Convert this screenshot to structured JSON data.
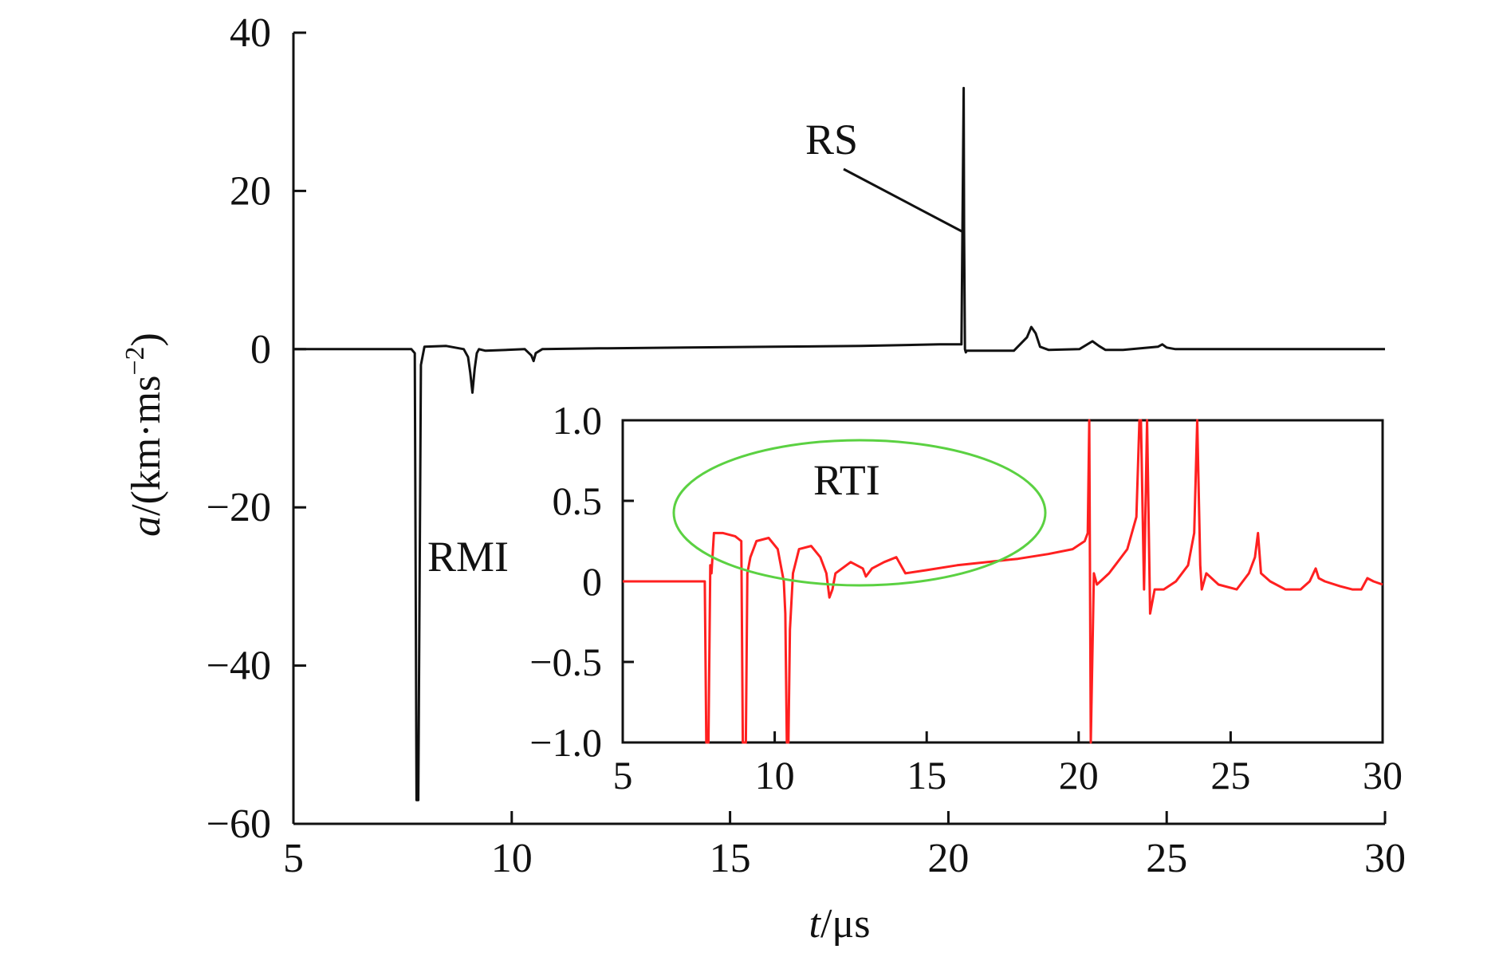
{
  "chart_data": [
    {
      "type": "line",
      "title": "",
      "xlabel_var": "t",
      "xlabel_unit": "/μs",
      "ylabel_var": "a",
      "ylabel_unit_open": "/(km·ms",
      "ylabel_sup": "−2",
      "ylabel_close": ")",
      "xlim": [
        5,
        30
      ],
      "ylim": [
        -60,
        40
      ],
      "xticks": [
        5,
        10,
        15,
        20,
        25,
        30
      ],
      "yticks": [
        -60,
        -40,
        -20,
        0,
        20,
        40
      ],
      "ytick_labels": [
        "−60",
        "−40",
        "−20",
        "0",
        "20",
        "40"
      ],
      "grid": false,
      "series": [
        {
          "color": "#111111",
          "x": [
            5,
            7.7,
            7.78,
            7.82,
            7.86,
            7.92,
            8.0,
            8.5,
            8.9,
            9.0,
            9.05,
            9.1,
            9.15,
            9.2,
            9.25,
            9.4,
            10.3,
            10.45,
            10.5,
            10.55,
            10.7,
            12,
            14,
            16,
            18,
            19.8,
            20.3,
            20.35,
            20.36,
            20.38,
            20.4,
            20.42,
            21.5,
            21.8,
            21.9,
            22.0,
            22.1,
            22.3,
            23.0,
            23.3,
            23.45,
            23.6,
            24.0,
            24.8,
            24.9,
            25.0,
            25.2,
            27,
            30
          ],
          "y": [
            0,
            0,
            -0.5,
            -57,
            -57,
            -2,
            0.3,
            0.4,
            0,
            -1,
            -3,
            -5.5,
            -2.5,
            -0.5,
            0,
            -0.2,
            0,
            -0.8,
            -1.5,
            -0.5,
            0,
            0.1,
            0.2,
            0.3,
            0.4,
            0.6,
            0.6,
            33,
            15,
            0,
            -0.4,
            -0.2,
            -0.2,
            1.5,
            2.8,
            2,
            0.3,
            -0.1,
            0,
            1,
            0.4,
            -0.1,
            -0.1,
            0.3,
            0.6,
            0.2,
            0,
            0,
            0
          ]
        }
      ],
      "annotations": [
        {
          "text": "RS"
        },
        {
          "text": "RMI"
        }
      ]
    },
    {
      "type": "line",
      "title": "",
      "xlim": [
        5,
        30
      ],
      "ylim": [
        -1.0,
        1.0
      ],
      "xticks": [
        5,
        10,
        15,
        20,
        25,
        30
      ],
      "yticks": [
        -1.0,
        -0.5,
        0,
        0.5,
        1.0
      ],
      "ytick_labels": [
        "−1.0",
        "−0.5",
        "0",
        "0.5",
        "1.0"
      ],
      "grid": false,
      "series": [
        {
          "color": "#ff2020",
          "x": [
            5,
            7.7,
            7.75,
            7.82,
            7.88,
            7.92,
            8.0,
            8.3,
            8.7,
            8.9,
            8.95,
            9.0,
            9.05,
            9.1,
            9.2,
            9.4,
            9.8,
            10.1,
            10.3,
            10.35,
            10.4,
            10.45,
            10.5,
            10.6,
            10.8,
            11.2,
            11.5,
            11.7,
            11.8,
            11.9,
            12.0,
            12.5,
            12.9,
            13.0,
            13.2,
            13.6,
            14.0,
            14.3,
            15.0,
            16.0,
            17.0,
            18.0,
            19.0,
            19.8,
            20.2,
            20.3,
            20.35,
            20.4,
            20.5,
            20.6,
            21.0,
            21.6,
            21.9,
            22.0,
            22.05,
            22.15,
            22.25,
            22.35,
            22.5,
            22.8,
            23.2,
            23.6,
            23.8,
            23.9,
            24.0,
            24.05,
            24.2,
            24.6,
            25.2,
            25.6,
            25.8,
            25.9,
            26.0,
            26.3,
            26.8,
            27.3,
            27.6,
            27.8,
            27.9,
            28.1,
            28.6,
            29.0,
            29.3,
            29.5,
            29.7,
            30.0
          ],
          "y": [
            0,
            0,
            -1.05,
            -1.05,
            0.1,
            0.05,
            0.3,
            0.3,
            0.28,
            0.25,
            -1.05,
            -1.05,
            -1.05,
            0.05,
            0.15,
            0.25,
            0.27,
            0.2,
            0.0,
            -0.2,
            -1.05,
            -1.05,
            -0.3,
            0.05,
            0.2,
            0.22,
            0.15,
            0.05,
            -0.1,
            -0.05,
            0.05,
            0.12,
            0.08,
            0.03,
            0.08,
            0.12,
            0.15,
            0.05,
            0.07,
            0.1,
            0.12,
            0.14,
            0.17,
            0.2,
            0.25,
            0.3,
            1.05,
            -1.05,
            0.05,
            -0.02,
            0.05,
            0.2,
            0.4,
            1.05,
            1.05,
            -0.05,
            1.05,
            -0.2,
            -0.05,
            -0.05,
            0.0,
            0.1,
            0.3,
            1.05,
            0.1,
            -0.05,
            0.05,
            -0.02,
            -0.05,
            0.05,
            0.15,
            0.3,
            0.05,
            0.0,
            -0.05,
            -0.05,
            0.0,
            0.08,
            0.02,
            0.0,
            -0.03,
            -0.05,
            -0.05,
            0.02,
            0.0,
            -0.02
          ]
        }
      ],
      "annotations": [
        {
          "text": "RTI"
        }
      ]
    }
  ]
}
